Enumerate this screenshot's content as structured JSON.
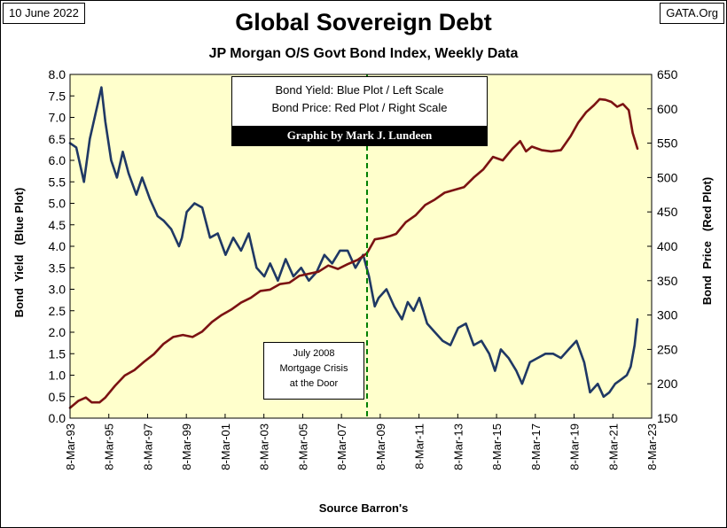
{
  "header": {
    "date": "10 June 2022",
    "site": "GATA.Org"
  },
  "legend": {
    "line1": "Bond Yield: Blue Plot / Left Scale",
    "line2": "Bond Price: Red Plot / Right Scale",
    "credit": "Graphic by Mark J. Lundeen"
  },
  "annotation": {
    "line1": "July 2008",
    "line2": "Mortgage Crisis",
    "line3": "at the Door"
  },
  "colors": {
    "plot_background": "#ffffcc",
    "yield_line": "#1f3864",
    "price_line": "#7b1212",
    "marker_line": "#008000"
  },
  "chart_data": {
    "type": "line",
    "title": "Global Sovereign Debt",
    "subtitle": "JP Morgan O/S Govt Bond Index, Weekly Data",
    "xlabel": "Source Barron's",
    "ylabel": "Bond  Yield   (Blue Plot)",
    "ylabel_right": "Bond  Price   (Red Plot)",
    "x_ticks": [
      "8-Mar-93",
      "8-Mar-95",
      "8-Mar-97",
      "8-Mar-99",
      "8-Mar-01",
      "8-Mar-03",
      "8-Mar-05",
      "8-Mar-07",
      "8-Mar-09",
      "8-Mar-11",
      "8-Mar-13",
      "8-Mar-15",
      "8-Mar-17",
      "8-Mar-19",
      "8-Mar-21",
      "8-Mar-23"
    ],
    "xlim": [
      1993.18,
      2023.18
    ],
    "ylim_left": [
      0,
      8
    ],
    "yticks_left": [
      "0.0",
      "0.5",
      "1.0",
      "1.5",
      "2.0",
      "2.5",
      "3.0",
      "3.5",
      "4.0",
      "4.5",
      "5.0",
      "5.5",
      "6.0",
      "6.5",
      "7.0",
      "7.5",
      "8.0"
    ],
    "ylim_right": [
      150,
      650
    ],
    "yticks_right": [
      "150",
      "200",
      "250",
      "300",
      "350",
      "400",
      "450",
      "500",
      "550",
      "600",
      "650"
    ],
    "grid": false,
    "vertical_marker": {
      "x": 2008.5
    },
    "series": [
      {
        "name": "Bond Yield",
        "axis": "left",
        "x": [
          1993.18,
          1993.5,
          1993.9,
          1994.2,
          1994.6,
          1994.8,
          1995.0,
          1995.3,
          1995.6,
          1995.9,
          1996.2,
          1996.6,
          1996.9,
          1997.3,
          1997.7,
          1998.0,
          1998.4,
          1998.8,
          1998.95,
          1999.2,
          1999.6,
          2000.0,
          2000.4,
          2000.8,
          2001.2,
          2001.6,
          2002.0,
          2002.4,
          2002.8,
          2003.2,
          2003.5,
          2003.9,
          2004.3,
          2004.7,
          2005.1,
          2005.5,
          2005.9,
          2006.3,
          2006.7,
          2007.1,
          2007.5,
          2007.9,
          2008.3,
          2008.6,
          2008.9,
          2009.1,
          2009.5,
          2009.9,
          2010.3,
          2010.6,
          2010.9,
          2011.2,
          2011.6,
          2012.0,
          2012.4,
          2012.8,
          2013.2,
          2013.6,
          2014.0,
          2014.4,
          2014.8,
          2015.1,
          2015.4,
          2015.8,
          2016.2,
          2016.5,
          2016.9,
          2017.3,
          2017.7,
          2018.1,
          2018.5,
          2018.9,
          2019.3,
          2019.7,
          2020.0,
          2020.4,
          2020.7,
          2021.0,
          2021.3,
          2021.6,
          2021.9,
          2022.1,
          2022.3,
          2022.45
        ],
        "values": [
          6.4,
          6.3,
          5.5,
          6.5,
          7.3,
          7.7,
          6.9,
          6.0,
          5.6,
          6.2,
          5.7,
          5.2,
          5.6,
          5.1,
          4.7,
          4.6,
          4.4,
          4.0,
          4.2,
          4.8,
          5.0,
          4.9,
          4.2,
          4.3,
          3.8,
          4.2,
          3.9,
          4.3,
          3.5,
          3.3,
          3.6,
          3.2,
          3.7,
          3.3,
          3.5,
          3.2,
          3.4,
          3.8,
          3.6,
          3.9,
          3.9,
          3.5,
          3.8,
          3.3,
          2.6,
          2.8,
          3.0,
          2.6,
          2.3,
          2.7,
          2.5,
          2.8,
          2.2,
          2.0,
          1.8,
          1.7,
          2.1,
          2.2,
          1.7,
          1.8,
          1.5,
          1.1,
          1.6,
          1.4,
          1.1,
          0.8,
          1.3,
          1.4,
          1.5,
          1.5,
          1.4,
          1.6,
          1.8,
          1.3,
          0.6,
          0.8,
          0.5,
          0.6,
          0.8,
          0.9,
          1.0,
          1.2,
          1.7,
          2.3
        ]
      },
      {
        "name": "Bond Price",
        "axis": "right",
        "x": [
          1993.18,
          1993.6,
          1994.0,
          1994.3,
          1994.7,
          1995.0,
          1995.5,
          1996.0,
          1996.5,
          1997.0,
          1997.5,
          1998.0,
          1998.5,
          1999.0,
          1999.5,
          2000.0,
          2000.5,
          2001.0,
          2001.5,
          2002.0,
          2002.5,
          2003.0,
          2003.5,
          2004.0,
          2004.5,
          2005.0,
          2005.5,
          2006.0,
          2006.5,
          2007.0,
          2007.5,
          2008.0,
          2008.5,
          2008.9,
          2009.3,
          2009.7,
          2010.0,
          2010.5,
          2011.0,
          2011.5,
          2012.0,
          2012.5,
          2013.0,
          2013.5,
          2014.0,
          2014.5,
          2015.0,
          2015.5,
          2016.0,
          2016.4,
          2016.7,
          2017.0,
          2017.5,
          2018.0,
          2018.5,
          2019.0,
          2019.4,
          2019.8,
          2020.2,
          2020.5,
          2020.8,
          2021.1,
          2021.4,
          2021.7,
          2022.0,
          2022.2,
          2022.45
        ],
        "values": [
          165,
          175,
          180,
          173,
          173,
          180,
          197,
          212,
          220,
          232,
          243,
          258,
          268,
          271,
          268,
          276,
          290,
          300,
          308,
          318,
          325,
          335,
          337,
          345,
          347,
          357,
          360,
          363,
          372,
          367,
          374,
          380,
          390,
          410,
          412,
          415,
          418,
          435,
          445,
          460,
          468,
          478,
          482,
          486,
          500,
          512,
          530,
          525,
          542,
          553,
          538,
          545,
          540,
          538,
          540,
          560,
          580,
          595,
          605,
          614,
          613,
          610,
          603,
          607,
          598,
          565,
          542
        ]
      }
    ]
  }
}
